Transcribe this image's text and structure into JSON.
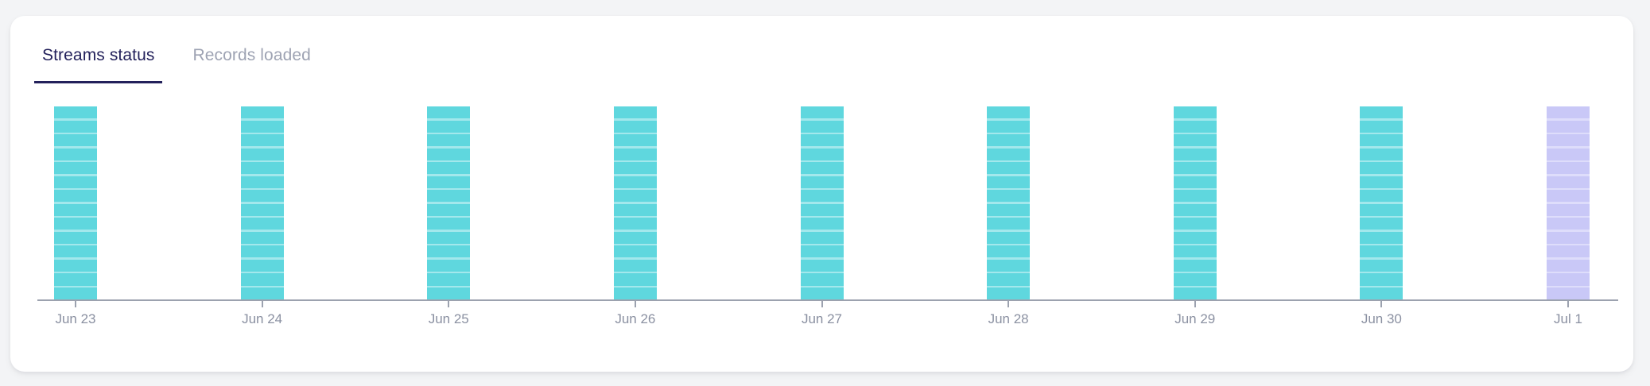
{
  "colors": {
    "page_bg": "#F3F4F6",
    "card_bg": "#FFFFFF",
    "active_tab": "#23215B",
    "inactive_tab": "#9EA3B3",
    "axis_line": "#9CA2AF",
    "axis_label": "#8A90A1",
    "bar_fill_success": "#5FD7DE",
    "bar_stripe_success": "#A3E8EC",
    "bar_fill_highlight": "#C9C8F7",
    "bar_stripe_highlight": "#DEDDFB"
  },
  "tabs": [
    {
      "label": "Streams status",
      "active": true
    },
    {
      "label": "Records loaded",
      "active": false
    }
  ],
  "chart_data": {
    "type": "bar",
    "title": "Streams status",
    "xlabel": "",
    "ylabel": "",
    "grid": false,
    "legend": false,
    "y_axis_shown": false,
    "categories": [
      "Jun 23",
      "Jun 24",
      "Jun 25",
      "Jun 26",
      "Jun 27",
      "Jun 28",
      "Jun 29",
      "Jun 30",
      "Jul 1"
    ],
    "values": [
      14,
      14,
      14,
      14,
      14,
      14,
      14,
      14,
      14
    ],
    "value_unit": "segments",
    "note": "All nine daily bars render at equal full height, each divided into 14 horizontal segments by thin lighter divider lines. Jun 23 through Jun 30 bars are teal (success); the Jul 1 bar is lavender (highlighted).",
    "bars": [
      {
        "date": "Jun 23",
        "segments": 14,
        "status": "success"
      },
      {
        "date": "Jun 24",
        "segments": 14,
        "status": "success"
      },
      {
        "date": "Jun 25",
        "segments": 14,
        "status": "success"
      },
      {
        "date": "Jun 26",
        "segments": 14,
        "status": "success"
      },
      {
        "date": "Jun 27",
        "segments": 14,
        "status": "success"
      },
      {
        "date": "Jun 28",
        "segments": 14,
        "status": "success"
      },
      {
        "date": "Jun 29",
        "segments": 14,
        "status": "success"
      },
      {
        "date": "Jun 30",
        "segments": 14,
        "status": "success"
      },
      {
        "date": "Jul 1",
        "segments": 14,
        "status": "highlight"
      }
    ]
  }
}
